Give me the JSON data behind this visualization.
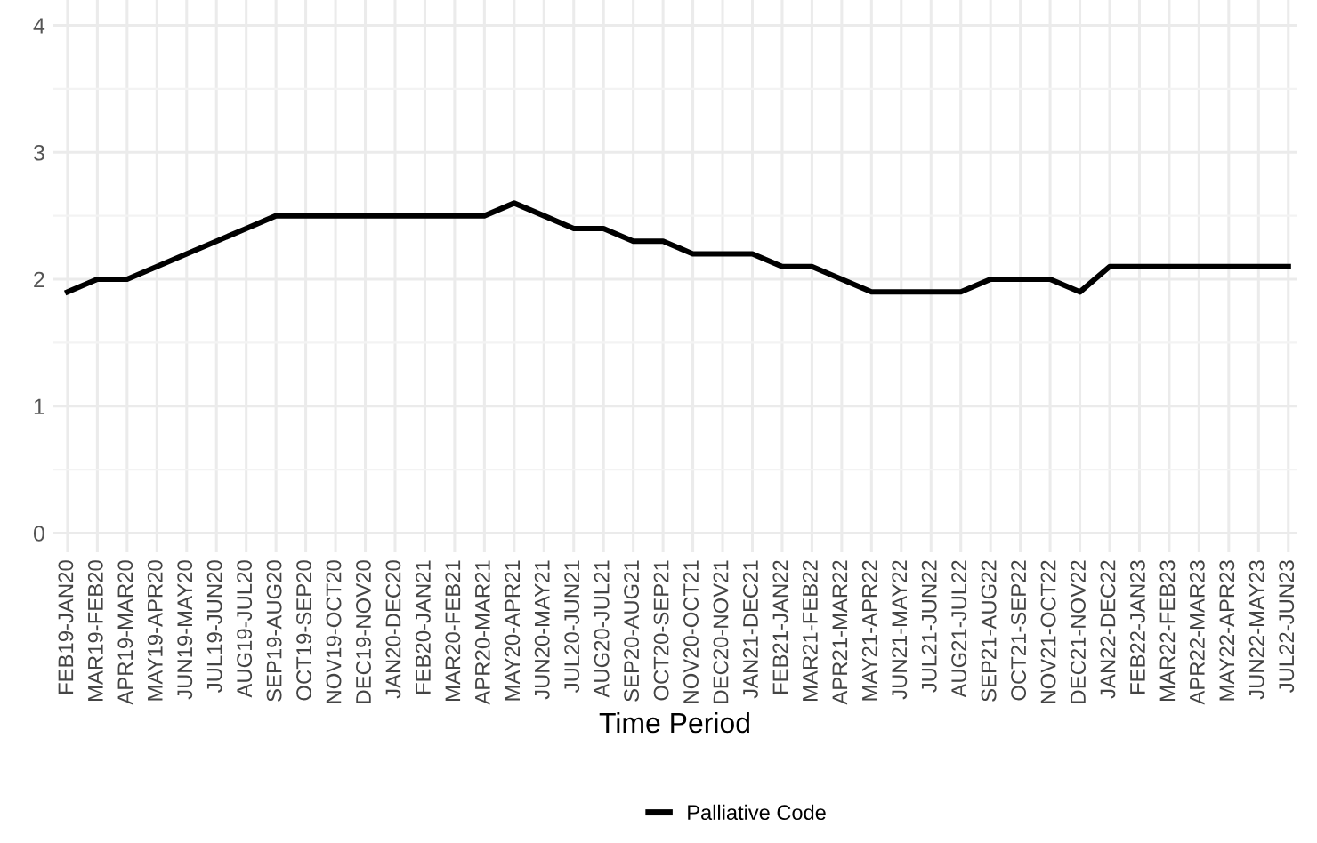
{
  "chart_data": {
    "type": "line",
    "xlabel": "Time Period",
    "categories": [
      "FEB19-JAN20",
      "MAR19-FEB20",
      "APR19-MAR20",
      "MAY19-APR20",
      "JUN19-MAY20",
      "JUL19-JUN20",
      "AUG19-JUL20",
      "SEP19-AUG20",
      "OCT19-SEP20",
      "NOV19-OCT20",
      "DEC19-NOV20",
      "JAN20-DEC20",
      "FEB20-JAN21",
      "MAR20-FEB21",
      "APR20-MAR21",
      "MAY20-APR21",
      "JUN20-MAY21",
      "JUL20-JUN21",
      "AUG20-JUL21",
      "SEP20-AUG21",
      "OCT20-SEP21",
      "NOV20-OCT21",
      "DEC20-NOV21",
      "JAN21-DEC21",
      "FEB21-JAN22",
      "MAR21-FEB22",
      "APR21-MAR22",
      "MAY21-APR22",
      "JUN21-MAY22",
      "JUL21-JUN22",
      "AUG21-JUL22",
      "SEP21-AUG22",
      "OCT21-SEP22",
      "NOV21-OCT22",
      "DEC21-NOV22",
      "JAN22-DEC22",
      "FEB22-JAN23",
      "MAR22-FEB23",
      "APR22-MAR23",
      "MAY22-APR23",
      "JUN22-MAY23",
      "JUL22-JUN23"
    ],
    "series": [
      {
        "name": "Palliative Code",
        "color": "#000000",
        "values": [
          1.9,
          2.0,
          2.0,
          2.1,
          2.2,
          2.3,
          2.4,
          2.5,
          2.5,
          2.5,
          2.5,
          2.5,
          2.5,
          2.5,
          2.5,
          2.6,
          2.5,
          2.4,
          2.4,
          2.3,
          2.3,
          2.2,
          2.2,
          2.2,
          2.1,
          2.1,
          2.0,
          1.9,
          1.9,
          1.9,
          1.9,
          2.0,
          2.0,
          2.0,
          1.9,
          2.1,
          2.1,
          2.1,
          2.1,
          2.1,
          2.1,
          2.1
        ]
      }
    ],
    "ylim": [
      -0.15,
      4.2
    ],
    "yticks": [
      0,
      1,
      2,
      3,
      4
    ],
    "grid": true,
    "legend": "bottom",
    "marker": "none",
    "line_style": "solid"
  }
}
